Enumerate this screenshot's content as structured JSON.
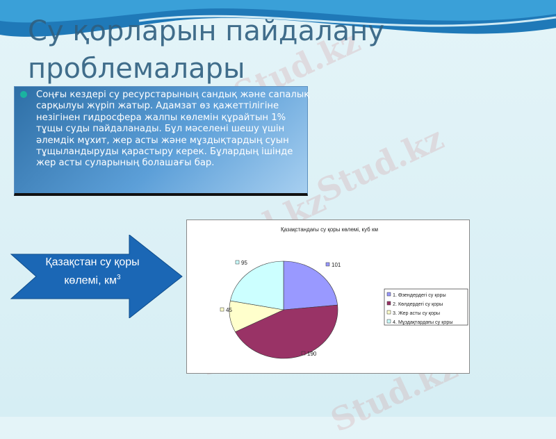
{
  "slide": {
    "title": "Су қорларын пайдалану проблемалары",
    "paragraph": "Соңғы кездері су ресурстарының сандық және сапалық сарқылуы жүріп жатыр. Адамзат өз қажеттілігіне незігінен гидросфера жалпы көлемін құрайтын 1%  тұщы суды пайдаланады. Бұл мәселені шешу үшін әлемдік мұхит, жер асты және мұздықтардың суын тұщыландыруды қарастыру керек. Бұлардың ішінде жер асты суларының болашағы бар.",
    "arrow_label": "Қазақстан су қоры көлемі, км",
    "arrow_label_sup": "3",
    "watermark": "Stud.kz"
  },
  "chart_data": {
    "type": "pie",
    "title": "Қазақстандағы су қоры көлемі, куб км",
    "categories": [
      "1. Өзендердегі су қоры",
      "2. Көлдердегі су қоры",
      "3. Жер асты су қоры",
      "4. Мұздақтардағы су қоры"
    ],
    "values": [
      101,
      190,
      45,
      95
    ],
    "colors": [
      "#9999ff",
      "#993366",
      "#ffffcc",
      "#ccffff"
    ],
    "legend": "right",
    "start": "top",
    "direction": "clockwise"
  }
}
